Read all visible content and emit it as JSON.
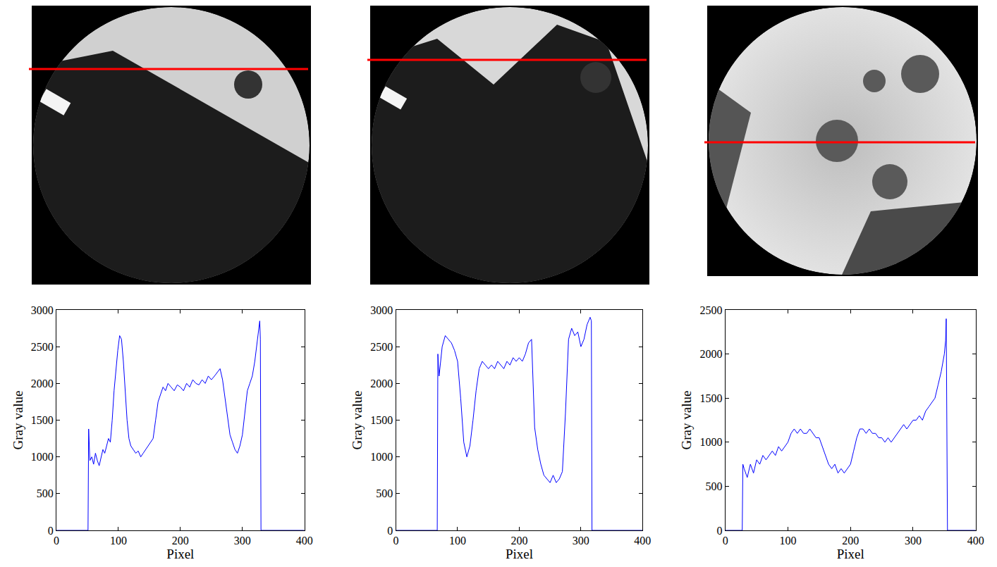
{
  "chart_data": [
    {
      "type": "line",
      "color": "#0000ff",
      "x_label": "Pixel",
      "y_label": "Gray value",
      "xlim": [
        0,
        400
      ],
      "xticks": [
        0,
        100,
        200,
        300,
        400
      ],
      "ylim": [
        0,
        3000
      ],
      "yticks": [
        0,
        500,
        1000,
        1500,
        2000,
        2500,
        3000
      ],
      "x": [
        0,
        51,
        52,
        54,
        57,
        60,
        63,
        66,
        69,
        72,
        75,
        78,
        81,
        84,
        87,
        90,
        93,
        96,
        99,
        102,
        105,
        108,
        111,
        114,
        117,
        120,
        124,
        128,
        132,
        136,
        140,
        144,
        148,
        152,
        156,
        160,
        164,
        168,
        172,
        176,
        180,
        185,
        190,
        195,
        200,
        205,
        210,
        215,
        220,
        225,
        230,
        235,
        240,
        245,
        250,
        255,
        260,
        264,
        268,
        272,
        276,
        280,
        284,
        288,
        292,
        296,
        300,
        304,
        308,
        312,
        316,
        320,
        324,
        328,
        329,
        330,
        331,
        400
      ],
      "values": [
        0,
        0,
        1380,
        950,
        1000,
        900,
        1050,
        950,
        880,
        1000,
        1100,
        1050,
        1150,
        1250,
        1200,
        1500,
        1900,
        2200,
        2450,
        2650,
        2600,
        2300,
        1900,
        1500,
        1250,
        1150,
        1100,
        1050,
        1080,
        1000,
        1050,
        1100,
        1150,
        1200,
        1250,
        1500,
        1750,
        1850,
        1950,
        1900,
        2000,
        1950,
        1900,
        1980,
        1950,
        1900,
        2000,
        1950,
        2050,
        2000,
        1980,
        2050,
        2000,
        2100,
        2050,
        2100,
        2150,
        2200,
        2050,
        1800,
        1500,
        1300,
        1200,
        1100,
        1050,
        1150,
        1300,
        1600,
        1900,
        2000,
        2100,
        2300,
        2550,
        2850,
        2600,
        0,
        0,
        0
      ]
    },
    {
      "type": "line",
      "color": "#0000ff",
      "x_label": "Pixel",
      "y_label": "Gray value",
      "xlim": [
        0,
        400
      ],
      "xticks": [
        0,
        100,
        200,
        300,
        400
      ],
      "ylim": [
        0,
        3000
      ],
      "yticks": [
        0,
        500,
        1000,
        1500,
        2000,
        2500,
        3000
      ],
      "x": [
        0,
        67,
        68,
        70,
        75,
        80,
        85,
        90,
        95,
        100,
        105,
        110,
        115,
        120,
        125,
        130,
        135,
        140,
        145,
        150,
        155,
        160,
        165,
        170,
        175,
        180,
        185,
        190,
        195,
        200,
        205,
        210,
        215,
        220,
        225,
        230,
        235,
        240,
        245,
        250,
        255,
        260,
        265,
        270,
        275,
        280,
        285,
        290,
        295,
        300,
        305,
        310,
        315,
        317,
        318,
        400
      ],
      "values": [
        0,
        0,
        2400,
        2100,
        2500,
        2650,
        2600,
        2550,
        2450,
        2300,
        1800,
        1200,
        1000,
        1150,
        1500,
        1900,
        2200,
        2300,
        2250,
        2200,
        2250,
        2200,
        2300,
        2250,
        2200,
        2300,
        2250,
        2350,
        2300,
        2350,
        2300,
        2400,
        2550,
        2600,
        1400,
        1100,
        900,
        750,
        700,
        650,
        750,
        650,
        700,
        800,
        1600,
        2600,
        2750,
        2650,
        2700,
        2500,
        2600,
        2800,
        2900,
        2850,
        0,
        0
      ]
    },
    {
      "type": "line",
      "color": "#0000ff",
      "x_label": "Pixel",
      "y_label": "Gray value",
      "xlim": [
        0,
        400
      ],
      "xticks": [
        0,
        100,
        200,
        300,
        400
      ],
      "ylim": [
        0,
        2500
      ],
      "yticks": [
        0,
        500,
        1000,
        1500,
        2000,
        2500
      ],
      "x": [
        0,
        27,
        28,
        30,
        35,
        40,
        45,
        50,
        55,
        60,
        65,
        70,
        75,
        80,
        85,
        90,
        95,
        100,
        105,
        110,
        115,
        120,
        125,
        130,
        135,
        140,
        145,
        150,
        155,
        160,
        165,
        170,
        175,
        180,
        185,
        190,
        195,
        200,
        205,
        210,
        215,
        220,
        225,
        230,
        235,
        240,
        245,
        250,
        255,
        260,
        265,
        270,
        275,
        280,
        285,
        290,
        295,
        300,
        305,
        310,
        315,
        320,
        325,
        330,
        335,
        340,
        345,
        350,
        352,
        353,
        355,
        400
      ],
      "values": [
        0,
        0,
        750,
        700,
        600,
        750,
        650,
        800,
        750,
        850,
        800,
        850,
        900,
        850,
        950,
        900,
        950,
        1000,
        1100,
        1150,
        1100,
        1150,
        1100,
        1100,
        1150,
        1100,
        1050,
        1050,
        950,
        850,
        750,
        700,
        750,
        650,
        700,
        650,
        700,
        750,
        900,
        1050,
        1150,
        1150,
        1100,
        1150,
        1100,
        1100,
        1050,
        1050,
        1000,
        1050,
        1000,
        1050,
        1100,
        1150,
        1200,
        1150,
        1200,
        1250,
        1250,
        1300,
        1250,
        1350,
        1400,
        1450,
        1500,
        1650,
        1800,
        2000,
        2150,
        2400,
        0,
        0
      ]
    }
  ]
}
